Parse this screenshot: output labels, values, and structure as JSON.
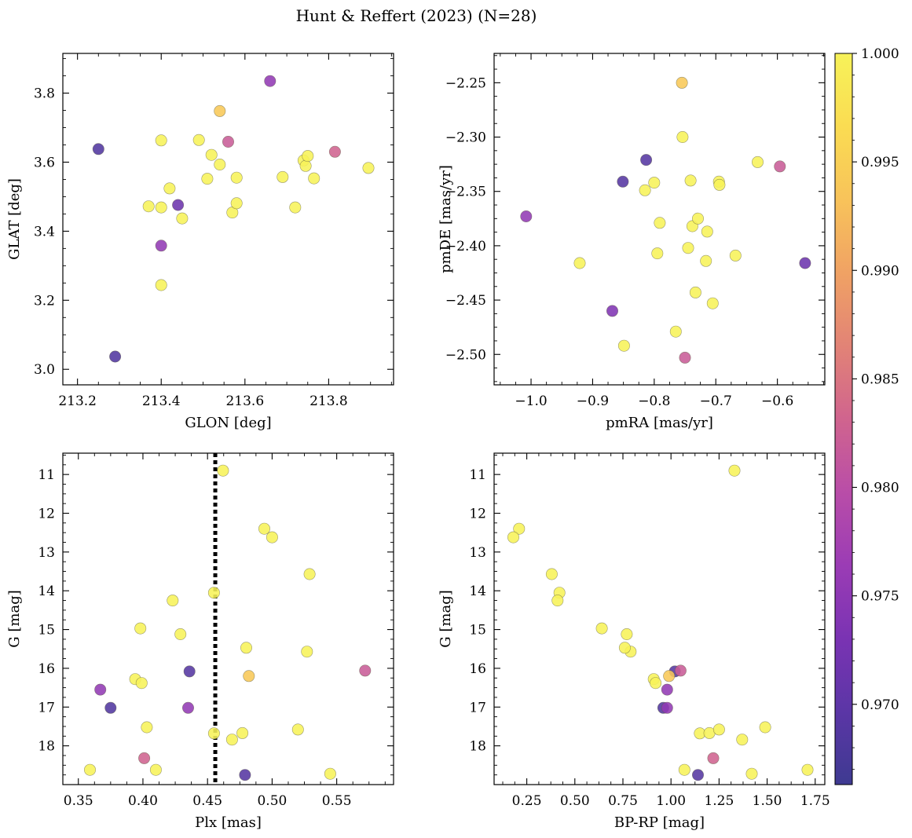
{
  "figure_title": "Hunt & Reffert (2023) (N=28)",
  "colorbar": {
    "min": 0.9663,
    "max": 1.0,
    "ticks": [
      "0.970",
      "0.975",
      "0.980",
      "0.985",
      "0.990",
      "0.995",
      "1.000"
    ],
    "tick_values": [
      0.97,
      0.975,
      0.98,
      0.985,
      0.99,
      0.995,
      1.0
    ],
    "colormap": "plasma",
    "colormap_stops": [
      "#3e3a91",
      "#5b36a6",
      "#7a33b3",
      "#9b3cb5",
      "#b94da8",
      "#d0648e",
      "#e28376",
      "#f0a264",
      "#f8c35a",
      "#fadc52",
      "#f7f259"
    ]
  },
  "reference_line": {
    "panel": 2,
    "x": 0.456,
    "style": "dotted",
    "color": "#000000"
  },
  "chart_data": [
    {
      "type": "scatter",
      "title": "",
      "xlabel": "GLON [deg]",
      "ylabel": "GLAT [deg]",
      "xlim": [
        213.165,
        213.955
      ],
      "ylim": [
        2.955,
        3.915
      ],
      "y_inverted": false,
      "xticks": [
        213.2,
        213.4,
        213.6,
        213.8
      ],
      "xtick_labels": [
        "213.2",
        "213.4",
        "213.6",
        "213.8"
      ],
      "yticks": [
        3.0,
        3.2,
        3.4,
        3.6,
        3.8
      ],
      "ytick_labels": [
        "3.0",
        "3.2",
        "3.4",
        "3.6",
        "3.8"
      ],
      "x": [
        213.25,
        213.29,
        213.37,
        213.4,
        213.4,
        213.4,
        213.4,
        213.42,
        213.44,
        213.45,
        213.49,
        213.51,
        213.52,
        213.54,
        213.54,
        213.56,
        213.57,
        213.58,
        213.58,
        213.66,
        213.69,
        213.72,
        213.74,
        213.745,
        213.75,
        213.765,
        213.815,
        213.895
      ],
      "y": [
        3.638,
        3.037,
        3.472,
        3.663,
        3.469,
        3.358,
        3.244,
        3.524,
        3.476,
        3.437,
        3.664,
        3.552,
        3.621,
        3.748,
        3.593,
        3.659,
        3.454,
        3.481,
        3.555,
        3.835,
        3.557,
        3.469,
        3.605,
        3.589,
        3.618,
        3.553,
        3.63,
        3.583
      ],
      "c": [
        0.9685,
        0.9685,
        1.0,
        1.0,
        1.0,
        0.9755,
        1.0,
        1.0,
        0.9715,
        1.0,
        1.0,
        1.0,
        1.0,
        0.994,
        1.0,
        0.982,
        1.0,
        1.0,
        1.0,
        0.9755,
        1.0,
        1.0,
        1.0,
        1.0,
        1.0,
        1.0,
        0.983,
        1.0
      ]
    },
    {
      "type": "scatter",
      "title": "",
      "xlabel": "pmRA [mas/yr]",
      "ylabel": "pmDE [mas/yr]",
      "xlim": [
        -1.06,
        -0.523
      ],
      "ylim": [
        -2.528,
        -2.223
      ],
      "y_inverted": false,
      "xticks": [
        -1.0,
        -0.9,
        -0.8,
        -0.7,
        -0.6
      ],
      "xtick_labels": [
        "−1.0",
        "−0.9",
        "−0.8",
        "−0.7",
        "−0.6"
      ],
      "yticks": [
        -2.5,
        -2.45,
        -2.4,
        -2.35,
        -2.3,
        -2.25
      ],
      "ytick_labels": [
        "−2.50",
        "−2.45",
        "−2.40",
        "−2.35",
        "−2.30",
        "−2.25"
      ],
      "x": [
        -1.008,
        -0.921,
        -0.868,
        -0.851,
        -0.849,
        -0.815,
        -0.813,
        -0.8,
        -0.795,
        -0.791,
        -0.765,
        -0.755,
        -0.754,
        -0.75,
        -0.745,
        -0.741,
        -0.738,
        -0.733,
        -0.729,
        -0.716,
        -0.714,
        -0.705,
        -0.695,
        -0.694,
        -0.668,
        -0.632,
        -0.596,
        -0.555
      ],
      "y": [
        -2.373,
        -2.416,
        -2.46,
        -2.341,
        -2.492,
        -2.349,
        -2.321,
        -2.342,
        -2.407,
        -2.379,
        -2.479,
        -2.25,
        -2.3,
        -2.503,
        -2.402,
        -2.34,
        -2.382,
        -2.443,
        -2.375,
        -2.414,
        -2.387,
        -2.453,
        -2.341,
        -2.344,
        -2.409,
        -2.323,
        -2.327,
        -2.416
      ],
      "c": [
        0.9755,
        1.0,
        0.9735,
        0.969,
        1.0,
        1.0,
        0.969,
        1.0,
        1.0,
        1.0,
        1.0,
        0.994,
        1.0,
        0.982,
        1.0,
        1.0,
        1.0,
        1.0,
        1.0,
        1.0,
        1.0,
        1.0,
        1.0,
        1.0,
        1.0,
        1.0,
        0.982,
        0.9715
      ]
    },
    {
      "type": "scatter",
      "title": "",
      "xlabel": "Plx [mas]",
      "ylabel": "G [mag]",
      "xlim": [
        0.338,
        0.594
      ],
      "ylim": [
        10.45,
        19.0
      ],
      "y_inverted": true,
      "xticks": [
        0.35,
        0.4,
        0.45,
        0.5,
        0.55
      ],
      "xtick_labels": [
        "0.35",
        "0.40",
        "0.45",
        "0.50",
        "0.55"
      ],
      "yticks": [
        11,
        12,
        13,
        14,
        15,
        16,
        17,
        18
      ],
      "ytick_labels": [
        "11",
        "12",
        "13",
        "14",
        "15",
        "16",
        "17",
        "18"
      ],
      "x": [
        0.462,
        0.494,
        0.5,
        0.529,
        0.455,
        0.423,
        0.398,
        0.429,
        0.48,
        0.527,
        0.394,
        0.399,
        0.436,
        0.367,
        0.375,
        0.403,
        0.435,
        0.455,
        0.469,
        0.477,
        0.52,
        0.401,
        0.41,
        0.359,
        0.479,
        0.545,
        0.482,
        0.572
      ],
      "y": [
        10.9,
        12.4,
        12.62,
        13.57,
        14.05,
        14.25,
        14.97,
        15.12,
        15.47,
        15.57,
        16.28,
        16.38,
        16.08,
        16.55,
        17.02,
        17.52,
        17.02,
        17.68,
        17.84,
        17.67,
        17.58,
        18.32,
        18.62,
        18.62,
        18.75,
        18.72,
        16.2,
        16.06
      ],
      "c": [
        1.0,
        1.0,
        1.0,
        1.0,
        1.0,
        1.0,
        1.0,
        1.0,
        1.0,
        1.0,
        1.0,
        1.0,
        0.969,
        0.9755,
        0.9685,
        1.0,
        0.9755,
        1.0,
        1.0,
        1.0,
        1.0,
        0.983,
        1.0,
        1.0,
        0.969,
        1.0,
        0.994,
        0.982
      ]
    },
    {
      "type": "scatter",
      "title": "",
      "xlabel": "BP-RP [mag]",
      "ylabel": "G [mag]",
      "xlim": [
        0.08,
        1.8
      ],
      "ylim": [
        10.45,
        19.0
      ],
      "y_inverted": true,
      "xticks": [
        0.25,
        0.5,
        0.75,
        1.0,
        1.25,
        1.5,
        1.75
      ],
      "xtick_labels": [
        "0.25",
        "0.50",
        "0.75",
        "1.00",
        "1.25",
        "1.50",
        "1.75"
      ],
      "yticks": [
        11,
        12,
        13,
        14,
        15,
        16,
        17,
        18
      ],
      "ytick_labels": [
        "11",
        "12",
        "13",
        "14",
        "15",
        "16",
        "17",
        "18"
      ],
      "x": [
        1.33,
        0.21,
        0.18,
        0.38,
        0.42,
        0.41,
        0.64,
        0.77,
        0.79,
        0.76,
        0.91,
        0.92,
        0.98,
        1.02,
        0.96,
        0.98,
        1.05,
        0.99,
        1.15,
        1.2,
        1.25,
        1.37,
        1.49,
        1.22,
        1.07,
        1.42,
        1.14,
        1.71
      ],
      "y": [
        10.9,
        12.4,
        12.62,
        13.57,
        14.05,
        14.25,
        14.97,
        15.12,
        15.57,
        15.47,
        16.28,
        16.38,
        16.55,
        16.08,
        17.02,
        17.02,
        16.06,
        16.2,
        17.68,
        17.67,
        17.58,
        17.84,
        17.52,
        18.32,
        18.62,
        18.72,
        18.75,
        18.62
      ],
      "c": [
        1.0,
        1.0,
        1.0,
        1.0,
        1.0,
        1.0,
        1.0,
        1.0,
        1.0,
        1.0,
        1.0,
        1.0,
        0.9755,
        0.969,
        0.9685,
        0.9755,
        0.982,
        0.994,
        1.0,
        1.0,
        1.0,
        1.0,
        1.0,
        0.983,
        1.0,
        1.0,
        0.969,
        1.0
      ]
    }
  ]
}
